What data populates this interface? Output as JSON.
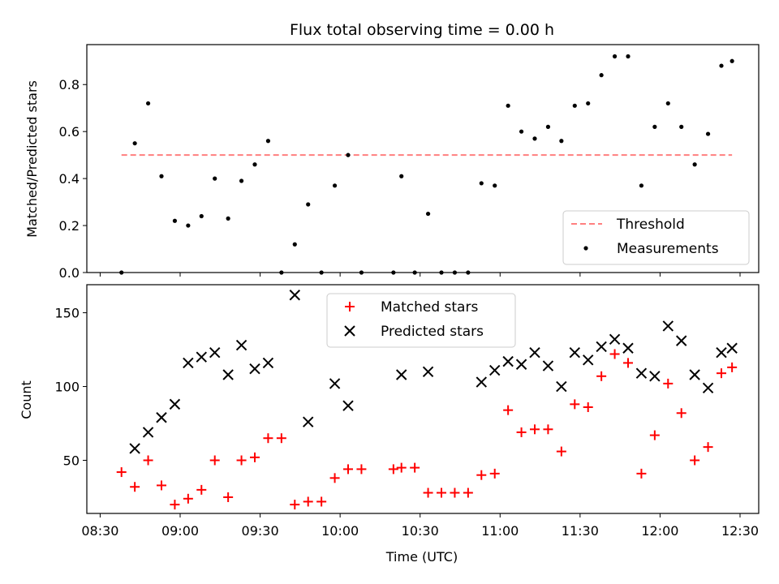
{
  "chart_data": [
    {
      "type": "scatter",
      "title": "Flux total observing time = 0.00 h",
      "xlabel": "",
      "ylabel": "Matched/Predicted stars",
      "ylim": [
        0,
        0.97
      ],
      "yticks": [
        "0.0",
        "0.2",
        "0.4",
        "0.6",
        "0.8"
      ],
      "xlim": [
        "08:25",
        "12:37"
      ],
      "threshold": {
        "name": "Threshold",
        "value": 0.5,
        "x_start": "08:38",
        "x_end": "12:27",
        "color": "#ff7f7f"
      },
      "series": [
        {
          "name": "Measurements",
          "color": "#000000",
          "x": [
            "08:38",
            "08:43",
            "08:48",
            "08:53",
            "08:58",
            "09:03",
            "09:08",
            "09:13",
            "09:18",
            "09:23",
            "09:28",
            "09:33",
            "09:38",
            "09:43",
            "09:48",
            "09:53",
            "09:58",
            "10:03",
            "10:08",
            "10:20",
            "10:23",
            "10:28",
            "10:33",
            "10:38",
            "10:43",
            "10:48",
            "10:53",
            "10:58",
            "11:03",
            "11:08",
            "11:13",
            "11:18",
            "11:23",
            "11:28",
            "11:33",
            "11:38",
            "11:43",
            "11:48",
            "11:53",
            "11:58",
            "12:03",
            "12:08",
            "12:13",
            "12:18",
            "12:23",
            "12:27"
          ],
          "y": [
            0.0,
            0.55,
            0.72,
            0.41,
            0.22,
            0.2,
            0.24,
            0.4,
            0.23,
            0.39,
            0.46,
            0.56,
            0.0,
            0.12,
            0.29,
            0.0,
            0.37,
            0.5,
            0.0,
            0.0,
            0.41,
            0.0,
            0.25,
            0.0,
            0.0,
            0.0,
            0.38,
            0.37,
            0.71,
            0.6,
            0.57,
            0.62,
            0.56,
            0.71,
            0.72,
            0.84,
            0.92,
            0.92,
            0.37,
            0.62,
            0.72,
            0.62,
            0.46,
            0.59,
            0.88,
            0.9
          ]
        }
      ],
      "legend_position": "lower-right",
      "grid": false
    },
    {
      "type": "scatter",
      "title": "",
      "xlabel": "Time (UTC)",
      "ylabel": "Count",
      "ylim": [
        14,
        169
      ],
      "yticks": [
        "50",
        "100",
        "150"
      ],
      "xlim": [
        "08:25",
        "12:37"
      ],
      "xticks": [
        "08:30",
        "09:00",
        "09:30",
        "10:00",
        "10:30",
        "11:00",
        "11:30",
        "12:00",
        "12:30"
      ],
      "series": [
        {
          "name": "Matched stars",
          "color": "#ff0000",
          "marker": "+",
          "x": [
            "08:38",
            "08:43",
            "08:48",
            "08:53",
            "08:58",
            "09:03",
            "09:08",
            "09:13",
            "09:18",
            "09:23",
            "09:28",
            "09:33",
            "09:38",
            "09:43",
            "09:48",
            "09:53",
            "09:58",
            "10:03",
            "10:08",
            "10:20",
            "10:23",
            "10:28",
            "10:33",
            "10:38",
            "10:43",
            "10:48",
            "10:53",
            "10:58",
            "11:03",
            "11:08",
            "11:13",
            "11:18",
            "11:23",
            "11:28",
            "11:33",
            "11:38",
            "11:43",
            "11:48",
            "11:53",
            "11:58",
            "12:03",
            "12:08",
            "12:13",
            "12:18",
            "12:23",
            "12:27"
          ],
          "y": [
            42,
            32,
            50,
            33,
            20,
            24,
            30,
            50,
            25,
            50,
            52,
            65,
            65,
            20,
            22,
            22,
            38,
            44,
            44,
            44,
            45,
            45,
            28,
            28,
            28,
            28,
            40,
            41,
            84,
            69,
            71,
            71,
            56,
            88,
            86,
            107,
            122,
            116,
            41,
            67,
            102,
            82,
            50,
            59,
            109,
            113
          ]
        },
        {
          "name": "Predicted stars",
          "color": "#000000",
          "marker": "x",
          "x": [
            "08:43",
            "08:48",
            "08:53",
            "08:58",
            "09:03",
            "09:08",
            "09:13",
            "09:18",
            "09:23",
            "09:28",
            "09:33",
            "09:43",
            "09:48",
            "09:58",
            "10:03",
            "10:23",
            "10:33",
            "10:53",
            "10:58",
            "11:03",
            "11:08",
            "11:13",
            "11:18",
            "11:23",
            "11:28",
            "11:33",
            "11:38",
            "11:43",
            "11:48",
            "11:53",
            "11:58",
            "12:03",
            "12:08",
            "12:13",
            "12:18",
            "12:23",
            "12:27"
          ],
          "y": [
            58,
            69,
            79,
            88,
            116,
            120,
            123,
            108,
            128,
            112,
            116,
            162,
            76,
            102,
            87,
            108,
            110,
            103,
            111,
            117,
            115,
            123,
            114,
            100,
            123,
            118,
            127,
            132,
            126,
            109,
            107,
            141,
            131,
            108,
            99,
            123,
            126
          ]
        }
      ],
      "legend_position": "upper-center",
      "grid": false
    }
  ]
}
